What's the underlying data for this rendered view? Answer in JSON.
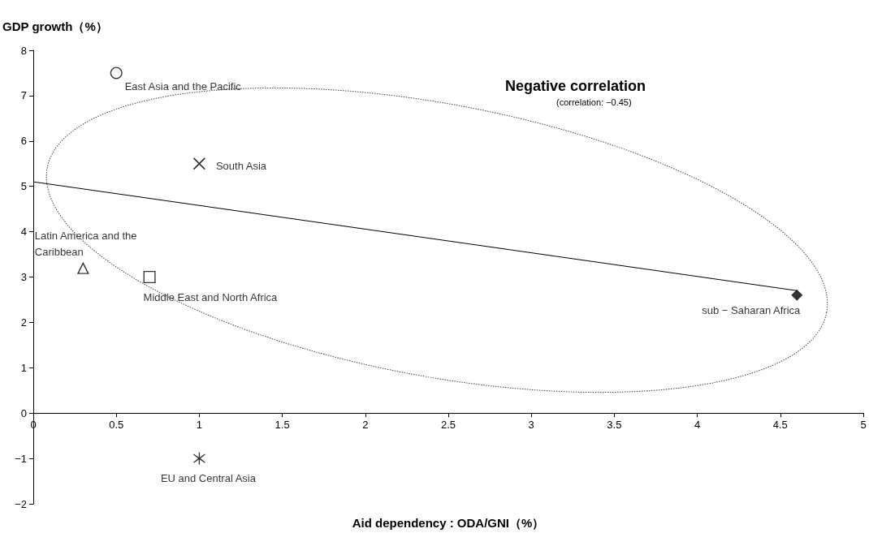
{
  "chart_data": {
    "type": "scatter",
    "title": "Negative correlation",
    "subtitle": "(correlation: −0.45)",
    "xlabel": "Aid dependency : ODA/GNI（%）",
    "ylabel": "GDP growth（%）",
    "xlim": [
      0,
      5
    ],
    "xticks": [
      0,
      0.5,
      1,
      1.5,
      2,
      2.5,
      3,
      3.5,
      4,
      4.5,
      5
    ],
    "ylim": [
      -2,
      8
    ],
    "yticks": [
      -2,
      -1,
      0,
      1,
      2,
      3,
      4,
      5,
      6,
      7,
      8
    ],
    "grid": false,
    "legend": false,
    "series": [
      {
        "name": "East Asia and the Pacific",
        "color": "#000000",
        "marker": "circle",
        "x": [
          0.5
        ],
        "values": [
          7.5
        ]
      },
      {
        "name": "South Asia",
        "color": "#000000",
        "marker": "cross",
        "x": [
          1
        ],
        "values": [
          5.5
        ]
      },
      {
        "name": "Latin America and the Caribbean",
        "color": "#000000",
        "marker": "triangle",
        "x": [
          0.3
        ],
        "values": [
          3.2
        ]
      },
      {
        "name": "Middle East and North Africa",
        "color": "#000000",
        "marker": "square",
        "x": [
          0.7
        ],
        "values": [
          3.0
        ]
      },
      {
        "name": "sub − Saharan Africa",
        "color": "#000000",
        "marker": "diamond",
        "x": [
          4.6
        ],
        "values": [
          2.6
        ]
      },
      {
        "name": "EU and Central Asia",
        "color": "#000000",
        "marker": "star",
        "x": [
          1
        ],
        "values": [
          -1
        ]
      },
      {
        "type": "line",
        "color": "#000000",
        "x": [
          0,
          4.6
        ],
        "values": [
          5.1,
          2.7
        ]
      }
    ]
  }
}
